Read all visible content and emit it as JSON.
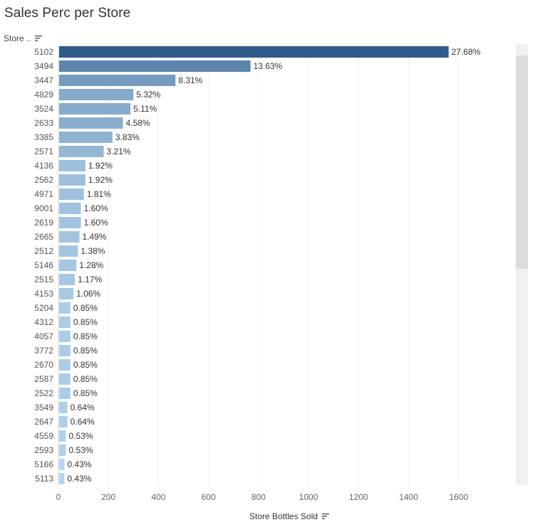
{
  "title": "Sales Perc per Store",
  "row_header_label": "Store ..",
  "icons": {
    "sort": "sort-icon"
  },
  "chart_data": {
    "type": "bar",
    "orientation": "horizontal",
    "xlabel": "Store Bottles Sold",
    "ylabel": "Store ..",
    "xlim": [
      0,
      1800
    ],
    "xticks": [
      0,
      200,
      400,
      600,
      800,
      1000,
      1200,
      1400,
      1600
    ],
    "grid": true,
    "categories": [
      "5102",
      "3494",
      "3447",
      "4829",
      "3524",
      "2633",
      "3385",
      "2571",
      "4136",
      "2562",
      "4971",
      "9001",
      "2619",
      "2665",
      "2512",
      "5146",
      "2515",
      "4153",
      "5204",
      "4312",
      "4057",
      "3772",
      "2670",
      "2587",
      "2522",
      "3549",
      "2647",
      "4559",
      "2593",
      "5166",
      "5113"
    ],
    "values": [
      1560,
      768,
      468,
      300,
      288,
      258,
      216,
      181,
      108,
      108,
      102,
      90,
      90,
      84,
      78,
      72,
      66,
      60,
      48,
      48,
      48,
      48,
      48,
      48,
      48,
      36,
      36,
      30,
      30,
      24,
      24
    ],
    "labels": [
      "27.68%",
      "13.63%",
      "8.31%",
      "5.32%",
      "5.11%",
      "4.58%",
      "3.83%",
      "3.21%",
      "1.92%",
      "1.92%",
      "1.81%",
      "1.60%",
      "1.60%",
      "1.49%",
      "1.38%",
      "1.28%",
      "1.17%",
      "1.06%",
      "0.85%",
      "0.85%",
      "0.85%",
      "0.85%",
      "0.85%",
      "0.85%",
      "0.85%",
      "0.64%",
      "0.64%",
      "0.53%",
      "0.53%",
      "0.43%",
      "0.43%"
    ],
    "color_scale": [
      "#b6d6ee",
      "#2e5b8a"
    ]
  }
}
